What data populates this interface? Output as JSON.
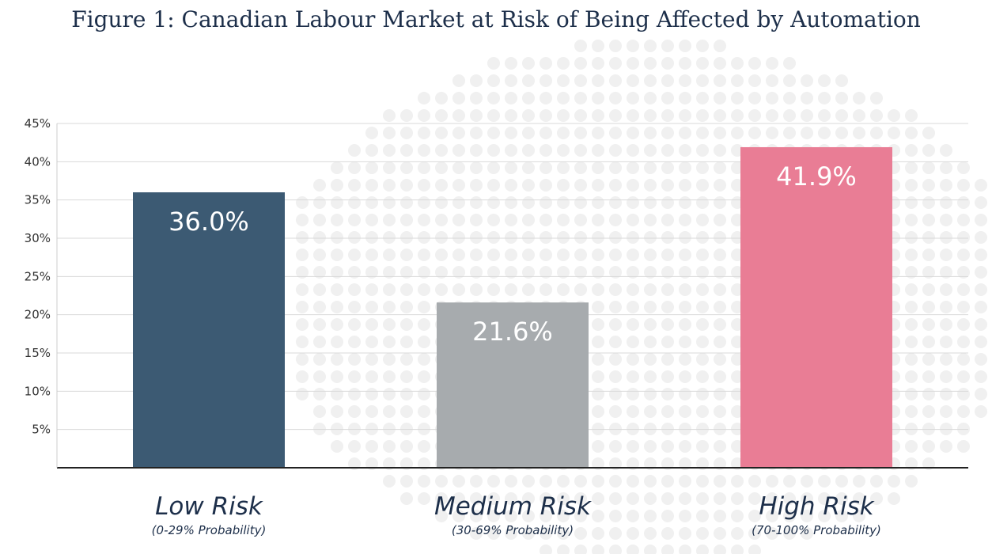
{
  "chart_data": {
    "type": "bar",
    "title": "Figure 1: Canadian Labour Market at Risk of Being Affected by Automation",
    "categories": [
      "Low Risk",
      "Medium Risk",
      "High Risk"
    ],
    "category_subtitles": [
      "(0-29% Probability)",
      "(30-69% Probability)",
      "(70-100% Probability)"
    ],
    "values": [
      36.0,
      21.6,
      41.9
    ],
    "value_labels": [
      "36.0%",
      "21.6%",
      "41.9%"
    ],
    "bar_colors": [
      "#3c5a73",
      "#a7abae",
      "#e97d95"
    ],
    "ylim": [
      0,
      45
    ],
    "yticks": [
      5,
      10,
      15,
      20,
      25,
      30,
      35,
      40,
      45
    ],
    "ytick_labels": [
      "5%",
      "10%",
      "15%",
      "20%",
      "25%",
      "30%",
      "35%",
      "40%",
      "45%"
    ],
    "grid": true,
    "xlabel": "",
    "ylabel": ""
  }
}
